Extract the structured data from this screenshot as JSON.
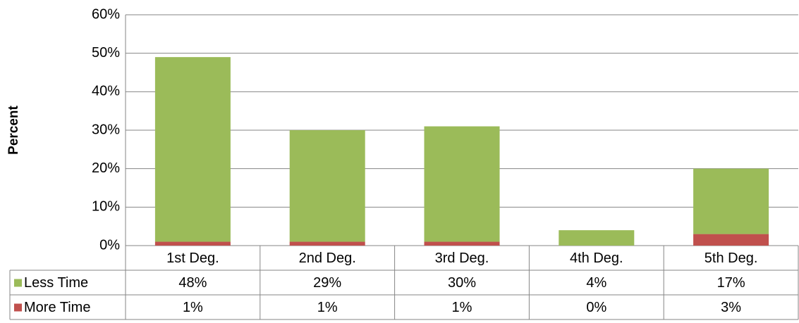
{
  "chart_data": {
    "type": "stacked_bar",
    "y_label": "Percent",
    "categories": [
      "1st Deg.",
      "2nd Deg.",
      "3rd Deg.",
      "4th Deg.",
      "5th Deg."
    ],
    "series": [
      {
        "name": "More Time",
        "color": "#c0504d",
        "values": [
          1,
          1,
          1,
          0,
          3
        ],
        "value_labels": [
          "1%",
          "1%",
          "1%",
          "0%",
          "3%"
        ]
      },
      {
        "name": "Less Time",
        "color": "#9bbb59",
        "values": [
          48,
          29,
          30,
          4,
          17
        ],
        "value_labels": [
          "48%",
          "29%",
          "30%",
          "4%",
          "17%"
        ]
      }
    ],
    "table_order": [
      1,
      0
    ],
    "ylim": [
      0,
      60
    ],
    "yticks": [
      {
        "value": 0,
        "label": "0%"
      },
      {
        "value": 10,
        "label": "10%"
      },
      {
        "value": 20,
        "label": "20%"
      },
      {
        "value": 30,
        "label": "30%"
      },
      {
        "value": 40,
        "label": "40%"
      },
      {
        "value": 50,
        "label": "50%"
      },
      {
        "value": 60,
        "label": "60%"
      }
    ],
    "grid": true
  }
}
